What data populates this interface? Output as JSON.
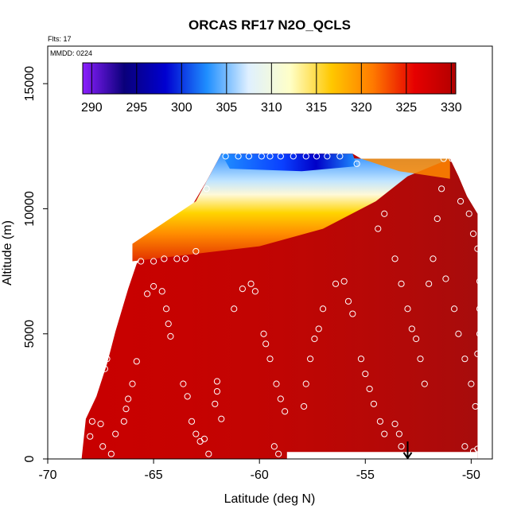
{
  "chart_data": {
    "type": "heatmap",
    "title": "ORCAS RF17 N2O_QCLS",
    "flts_note": "Flts: 17",
    "mmdd_note": "MMDD: 0224",
    "xlabel": "Latitude (deg N)",
    "ylabel": "Altitude (m)",
    "xlim": [
      -70,
      -49
    ],
    "ylim": [
      0,
      16500
    ],
    "x_ticks": [
      -70,
      -65,
      -60,
      -55,
      -50
    ],
    "y_ticks": [
      0,
      5000,
      10000,
      15000
    ],
    "colorbar": {
      "range": [
        289,
        330.5
      ],
      "ticks": [
        290,
        295,
        300,
        305,
        310,
        315,
        320,
        325,
        330
      ],
      "colors": [
        "#8b1fff",
        "#0a007a",
        "#0000d0",
        "#1f8fff",
        "#dff0ff",
        "#ffffc8",
        "#ffc800",
        "#ff7a00",
        "#e60000",
        "#b20000"
      ]
    },
    "coverage_top": [
      {
        "lat": -68.4,
        "alt": 0
      },
      {
        "lat": -68.2,
        "alt": 1600
      },
      {
        "lat": -67.7,
        "alt": 2500
      },
      {
        "lat": -67.2,
        "alt": 3800
      },
      {
        "lat": -66.8,
        "alt": 5100
      },
      {
        "lat": -66.2,
        "alt": 6800
      },
      {
        "lat": -65.8,
        "alt": 7800
      },
      {
        "lat": -65.5,
        "alt": 8100
      },
      {
        "lat": -64.8,
        "alt": 8600
      },
      {
        "lat": -64.0,
        "alt": 9300
      },
      {
        "lat": -63.2,
        "alt": 10100
      },
      {
        "lat": -62.5,
        "alt": 11100
      },
      {
        "lat": -61.8,
        "alt": 12200
      },
      {
        "lat": -55.6,
        "alt": 12200
      },
      {
        "lat": -55.2,
        "alt": 12000
      },
      {
        "lat": -51.0,
        "alt": 12000
      },
      {
        "lat": -50.6,
        "alt": 11300
      },
      {
        "lat": -50.2,
        "alt": 10500
      },
      {
        "lat": -49.7,
        "alt": 9800
      },
      {
        "lat": -49.7,
        "alt": 0
      }
    ],
    "transition_layer": {
      "lower_edge": [
        [
          -66.0,
          7900
        ],
        [
          -63.0,
          8200
        ],
        [
          -60.0,
          8500
        ],
        [
          -57.0,
          9200
        ],
        [
          -54.5,
          10300
        ],
        [
          -53.0,
          11300
        ],
        [
          -51.0,
          12000
        ]
      ],
      "upper_edge": [
        [
          -66.0,
          8600
        ],
        [
          -63.0,
          10300
        ],
        [
          -61.8,
          12200
        ],
        [
          -55.2,
          12000
        ],
        [
          -53.0,
          12000
        ]
      ]
    },
    "observations": [
      {
        "lat": -67.9,
        "alt": 1500
      },
      {
        "lat": -67.5,
        "alt": 1400
      },
      {
        "lat": -68.0,
        "alt": 900
      },
      {
        "lat": -67.4,
        "alt": 500
      },
      {
        "lat": -67.0,
        "alt": 200
      },
      {
        "lat": -66.8,
        "alt": 1000
      },
      {
        "lat": -67.3,
        "alt": 3600
      },
      {
        "lat": -67.2,
        "alt": 4000
      },
      {
        "lat": -66.4,
        "alt": 1500
      },
      {
        "lat": -66.3,
        "alt": 2000
      },
      {
        "lat": -66.2,
        "alt": 2400
      },
      {
        "lat": -66.0,
        "alt": 3000
      },
      {
        "lat": -65.8,
        "alt": 3900
      },
      {
        "lat": -65.3,
        "alt": 6600
      },
      {
        "lat": -65.0,
        "alt": 6900
      },
      {
        "lat": -64.6,
        "alt": 6700
      },
      {
        "lat": -64.4,
        "alt": 6000
      },
      {
        "lat": -64.3,
        "alt": 5400
      },
      {
        "lat": -64.2,
        "alt": 4900
      },
      {
        "lat": -65.6,
        "alt": 7900
      },
      {
        "lat": -65.0,
        "alt": 7900
      },
      {
        "lat": -64.5,
        "alt": 8000
      },
      {
        "lat": -63.9,
        "alt": 8000
      },
      {
        "lat": -63.5,
        "alt": 8000
      },
      {
        "lat": -63.0,
        "alt": 8300
      },
      {
        "lat": -63.6,
        "alt": 3000
      },
      {
        "lat": -63.4,
        "alt": 2500
      },
      {
        "lat": -63.2,
        "alt": 1500
      },
      {
        "lat": -63.0,
        "alt": 1000
      },
      {
        "lat": -62.8,
        "alt": 700
      },
      {
        "lat": -62.4,
        "alt": 200
      },
      {
        "lat": -62.6,
        "alt": 800
      },
      {
        "lat": -62.0,
        "alt": 3100
      },
      {
        "lat": -62.0,
        "alt": 2700
      },
      {
        "lat": -62.1,
        "alt": 2200
      },
      {
        "lat": -61.8,
        "alt": 1600
      },
      {
        "lat": -61.2,
        "alt": 6000
      },
      {
        "lat": -60.8,
        "alt": 6800
      },
      {
        "lat": -60.4,
        "alt": 7000
      },
      {
        "lat": -60.2,
        "alt": 6700
      },
      {
        "lat": -59.8,
        "alt": 5000
      },
      {
        "lat": -59.7,
        "alt": 4600
      },
      {
        "lat": -59.5,
        "alt": 4000
      },
      {
        "lat": -59.2,
        "alt": 3000
      },
      {
        "lat": -59.0,
        "alt": 2400
      },
      {
        "lat": -58.8,
        "alt": 1900
      },
      {
        "lat": -59.3,
        "alt": 500
      },
      {
        "lat": -59.1,
        "alt": 200
      },
      {
        "lat": -57.9,
        "alt": 2100
      },
      {
        "lat": -57.8,
        "alt": 3000
      },
      {
        "lat": -57.6,
        "alt": 4000
      },
      {
        "lat": -57.4,
        "alt": 4800
      },
      {
        "lat": -57.2,
        "alt": 5200
      },
      {
        "lat": -57.0,
        "alt": 6000
      },
      {
        "lat": -56.4,
        "alt": 7000
      },
      {
        "lat": -56.0,
        "alt": 7100
      },
      {
        "lat": -55.8,
        "alt": 6300
      },
      {
        "lat": -55.6,
        "alt": 5800
      },
      {
        "lat": -55.2,
        "alt": 4000
      },
      {
        "lat": -55.0,
        "alt": 3400
      },
      {
        "lat": -54.8,
        "alt": 2800
      },
      {
        "lat": -54.6,
        "alt": 2200
      },
      {
        "lat": -54.3,
        "alt": 1500
      },
      {
        "lat": -54.1,
        "alt": 1000
      },
      {
        "lat": -53.6,
        "alt": 1400
      },
      {
        "lat": -53.4,
        "alt": 1000
      },
      {
        "lat": -53.3,
        "alt": 500
      },
      {
        "lat": -54.4,
        "alt": 9200
      },
      {
        "lat": -54.1,
        "alt": 9800
      },
      {
        "lat": -53.6,
        "alt": 8000
      },
      {
        "lat": -53.3,
        "alt": 7000
      },
      {
        "lat": -53.0,
        "alt": 6000
      },
      {
        "lat": -52.8,
        "alt": 5200
      },
      {
        "lat": -52.6,
        "alt": 4800
      },
      {
        "lat": -52.4,
        "alt": 4000
      },
      {
        "lat": -52.2,
        "alt": 3000
      },
      {
        "lat": -52.0,
        "alt": 7000
      },
      {
        "lat": -51.8,
        "alt": 8000
      },
      {
        "lat": -51.6,
        "alt": 9600
      },
      {
        "lat": -51.4,
        "alt": 10800
      },
      {
        "lat": -51.2,
        "alt": 7200
      },
      {
        "lat": -50.8,
        "alt": 6000
      },
      {
        "lat": -50.6,
        "alt": 5000
      },
      {
        "lat": -50.3,
        "alt": 4000
      },
      {
        "lat": -50.0,
        "alt": 3000
      },
      {
        "lat": -49.8,
        "alt": 2100
      },
      {
        "lat": -50.9,
        "alt": 12000
      },
      {
        "lat": -51.3,
        "alt": 12000
      },
      {
        "lat": -50.5,
        "alt": 10300
      },
      {
        "lat": -50.1,
        "alt": 9800
      },
      {
        "lat": -49.9,
        "alt": 9000
      },
      {
        "lat": -49.7,
        "alt": 8400
      },
      {
        "lat": -49.6,
        "alt": 7100
      },
      {
        "lat": -49.6,
        "alt": 6000
      },
      {
        "lat": -49.6,
        "alt": 5000
      },
      {
        "lat": -49.7,
        "alt": 4200
      },
      {
        "lat": -50.3,
        "alt": 500
      },
      {
        "lat": -49.9,
        "alt": 300
      },
      {
        "lat": -49.7,
        "alt": 400
      },
      {
        "lat": -61.6,
        "alt": 12100
      },
      {
        "lat": -61.0,
        "alt": 12100
      },
      {
        "lat": -60.5,
        "alt": 12100
      },
      {
        "lat": -59.9,
        "alt": 12100
      },
      {
        "lat": -59.5,
        "alt": 12100
      },
      {
        "lat": -59.0,
        "alt": 12100
      },
      {
        "lat": -58.4,
        "alt": 12100
      },
      {
        "lat": -57.8,
        "alt": 12100
      },
      {
        "lat": -57.3,
        "alt": 12100
      },
      {
        "lat": -56.8,
        "alt": 12100
      },
      {
        "lat": -56.2,
        "alt": 12100
      },
      {
        "lat": -55.4,
        "alt": 11800
      },
      {
        "lat": -62.5,
        "alt": 10800
      }
    ],
    "marker": {
      "lat": -53.0,
      "alt": 600,
      "type": "arrow"
    }
  }
}
